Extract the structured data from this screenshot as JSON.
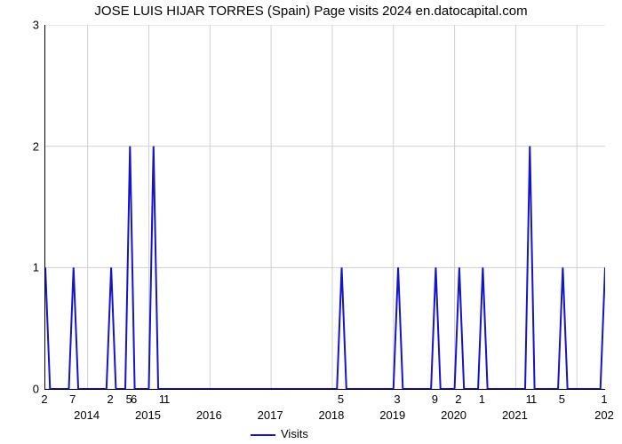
{
  "title": "JOSE LUIS HIJAR TORRES (Spain) Page visits 2024 en.datocapital.com",
  "xlabel": "Visits",
  "legend_label": "Visits",
  "chart": {
    "type": "line",
    "line_color": "#1414c8",
    "line_width": 2,
    "background_color": "#ffffff",
    "grid_color": "#d0d0d0",
    "ylim": [
      0,
      3
    ],
    "yticks": [
      0,
      1,
      2,
      3
    ],
    "n_points": 120,
    "x_value_labels": [
      {
        "i": 0,
        "t": "2"
      },
      {
        "i": 6,
        "t": "7"
      },
      {
        "i": 14,
        "t": "2"
      },
      {
        "i": 18,
        "t": "5"
      },
      {
        "i": 19,
        "t": "6"
      },
      {
        "i": 25,
        "t": "1"
      },
      {
        "i": 26,
        "t": "1"
      },
      {
        "i": 63,
        "t": "5"
      },
      {
        "i": 75,
        "t": "3"
      },
      {
        "i": 83,
        "t": "9"
      },
      {
        "i": 88,
        "t": "2"
      },
      {
        "i": 93,
        "t": "1"
      },
      {
        "i": 103,
        "t": "1"
      },
      {
        "i": 104,
        "t": "1"
      },
      {
        "i": 110,
        "t": "5"
      },
      {
        "i": 119,
        "t": "1"
      }
    ],
    "x_year_labels": [
      {
        "i": 9,
        "t": "2014"
      },
      {
        "i": 22,
        "t": "2015"
      },
      {
        "i": 35,
        "t": "2016"
      },
      {
        "i": 48,
        "t": "2017"
      },
      {
        "i": 61,
        "t": "2018"
      },
      {
        "i": 74,
        "t": "2019"
      },
      {
        "i": 87,
        "t": "2020"
      },
      {
        "i": 100,
        "t": "2021"
      },
      {
        "i": 119,
        "t": "202"
      }
    ],
    "x_year_grid": [
      9,
      22,
      35,
      48,
      61,
      74,
      87,
      100,
      113
    ],
    "values": [
      1,
      0,
      0,
      0,
      0,
      0,
      1,
      0,
      0,
      0,
      0,
      0,
      0,
      0,
      1,
      0,
      0,
      0,
      2,
      0,
      0,
      0,
      0,
      2,
      0,
      0,
      0,
      0,
      0,
      0,
      0,
      0,
      0,
      0,
      0,
      0,
      0,
      0,
      0,
      0,
      0,
      0,
      0,
      0,
      0,
      0,
      0,
      0,
      0,
      0,
      0,
      0,
      0,
      0,
      0,
      0,
      0,
      0,
      0,
      0,
      0,
      0,
      0,
      1,
      0,
      0,
      0,
      0,
      0,
      0,
      0,
      0,
      0,
      0,
      0,
      1,
      0,
      0,
      0,
      0,
      0,
      0,
      0,
      1,
      0,
      0,
      0,
      0,
      1,
      0,
      0,
      0,
      0,
      1,
      0,
      0,
      0,
      0,
      0,
      0,
      0,
      0,
      0,
      2,
      0,
      0,
      0,
      0,
      0,
      0,
      1,
      0,
      0,
      0,
      0,
      0,
      0,
      0,
      0,
      1
    ]
  }
}
